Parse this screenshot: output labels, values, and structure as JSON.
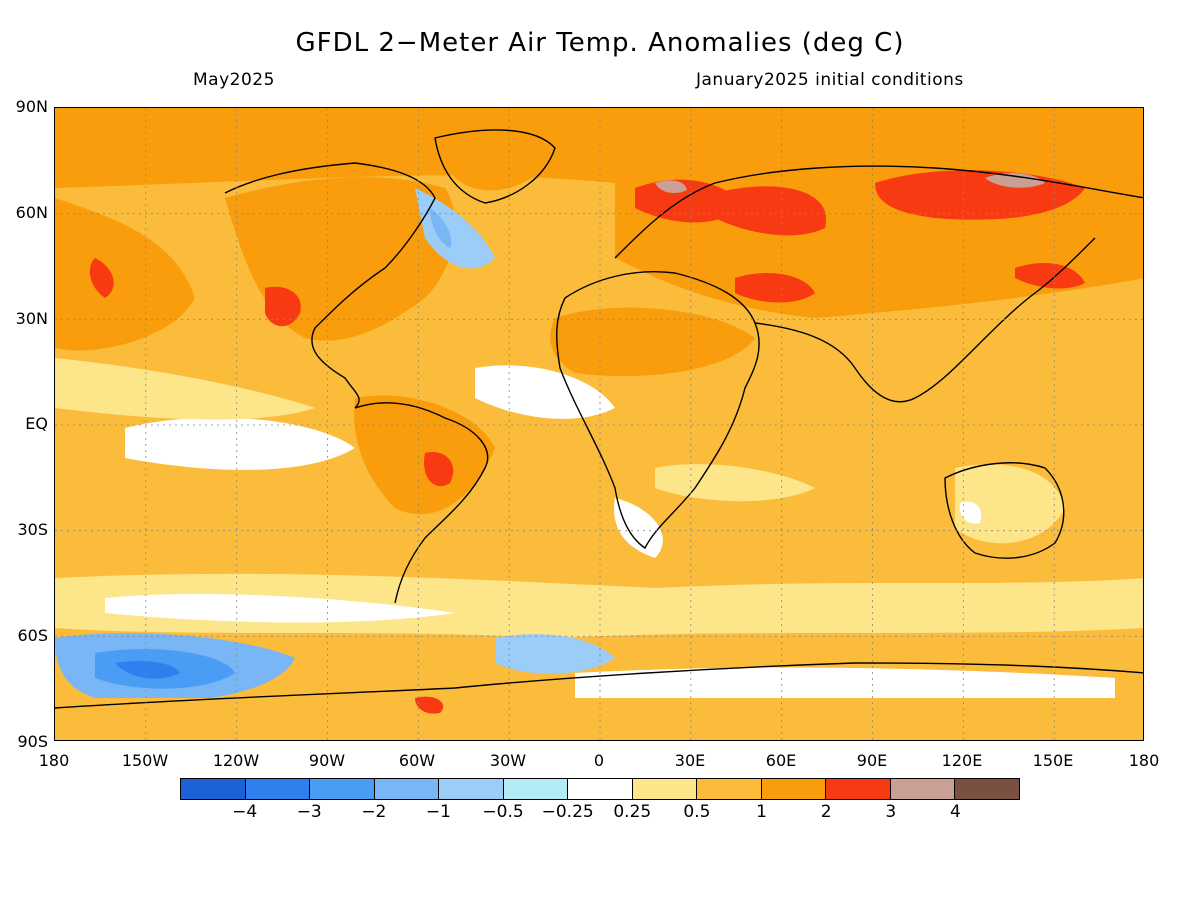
{
  "title": "GFDL 2−Meter Air Temp. Anomalies (deg C)",
  "valid_month": "May2025",
  "init_text": "January2025 initial conditions",
  "lat_labels": [
    "90N",
    "60N",
    "30N",
    "EQ",
    "30S",
    "60S",
    "90S"
  ],
  "lon_labels": [
    "180",
    "150W",
    "120W",
    "90W",
    "60W",
    "30W",
    "0",
    "30E",
    "60E",
    "90E",
    "120E",
    "150E",
    "180"
  ],
  "colorbar": {
    "colors": [
      "#1a62d6",
      "#2f80ee",
      "#4a9cf5",
      "#79b6f6",
      "#9ccdf8",
      "#b4ecf6",
      "#ffffff",
      "#fde58a",
      "#fbbc3c",
      "#f99d0c",
      "#f83a12",
      "#c9a093",
      "#7a5043"
    ],
    "labels": [
      "−4",
      "−3",
      "−2",
      "−1",
      "−0.5",
      "−0.25",
      "0.25",
      "0.5",
      "1",
      "2",
      "3",
      "4"
    ]
  }
}
